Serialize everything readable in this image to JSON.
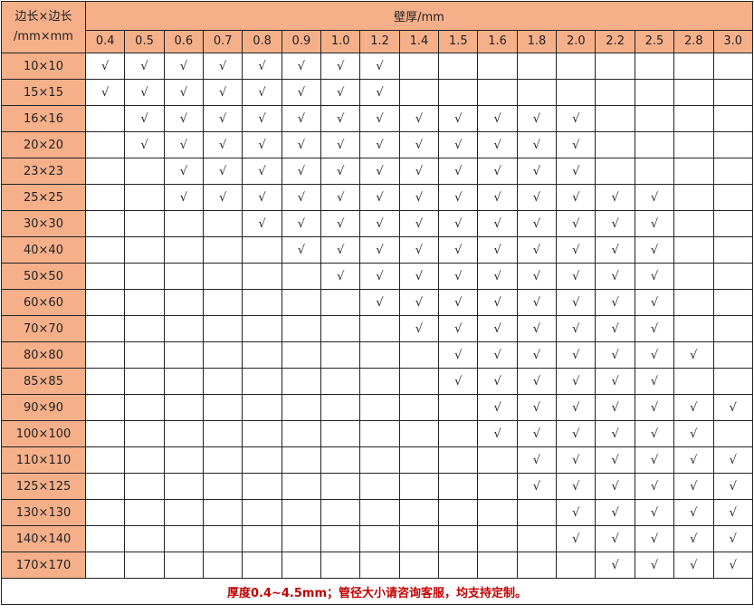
{
  "header": {
    "corner_line1": "边长×边长",
    "corner_line2": "/mm×mm",
    "group_label": "壁厚/mm"
  },
  "columns": [
    "0.4",
    "0.5",
    "0.6",
    "0.7",
    "0.8",
    "0.9",
    "1.0",
    "1.2",
    "1.4",
    "1.5",
    "1.6",
    "1.8",
    "2.0",
    "2.2",
    "2.5",
    "2.8",
    "3.0"
  ],
  "check_mark": "√",
  "rows": [
    {
      "size": "10×10",
      "available": [
        0,
        1,
        2,
        3,
        4,
        5,
        6,
        7
      ]
    },
    {
      "size": "15×15",
      "available": [
        0,
        1,
        2,
        3,
        4,
        5,
        6,
        7
      ]
    },
    {
      "size": "16×16",
      "available": [
        1,
        2,
        3,
        4,
        5,
        6,
        7,
        8,
        9,
        10,
        11,
        12
      ]
    },
    {
      "size": "20×20",
      "available": [
        1,
        2,
        3,
        4,
        5,
        6,
        7,
        8,
        9,
        10,
        11,
        12
      ]
    },
    {
      "size": "23×23",
      "available": [
        2,
        3,
        4,
        5,
        6,
        7,
        8,
        9,
        10,
        11,
        12
      ]
    },
    {
      "size": "25×25",
      "available": [
        2,
        3,
        4,
        5,
        6,
        7,
        8,
        9,
        10,
        11,
        12,
        13,
        14
      ]
    },
    {
      "size": "30×30",
      "available": [
        4,
        5,
        6,
        7,
        8,
        9,
        10,
        11,
        12,
        13,
        14
      ]
    },
    {
      "size": "40×40",
      "available": [
        5,
        6,
        7,
        8,
        9,
        10,
        11,
        12,
        13,
        14
      ]
    },
    {
      "size": "50×50",
      "available": [
        6,
        7,
        8,
        9,
        10,
        11,
        12,
        13,
        14
      ]
    },
    {
      "size": "60×60",
      "available": [
        7,
        8,
        9,
        10,
        11,
        12,
        13,
        14
      ]
    },
    {
      "size": "70×70",
      "available": [
        8,
        9,
        10,
        11,
        12,
        13,
        14
      ]
    },
    {
      "size": "80×80",
      "available": [
        9,
        10,
        11,
        12,
        13,
        14,
        15
      ]
    },
    {
      "size": "85×85",
      "available": [
        9,
        10,
        11,
        12,
        13,
        14
      ]
    },
    {
      "size": "90×90",
      "available": [
        10,
        11,
        12,
        13,
        14,
        15,
        16
      ]
    },
    {
      "size": "100×100",
      "available": [
        10,
        11,
        12,
        13,
        14,
        15
      ]
    },
    {
      "size": "110×110",
      "available": [
        11,
        12,
        13,
        14,
        15,
        16
      ]
    },
    {
      "size": "125×125",
      "available": [
        11,
        12,
        13,
        14,
        15,
        16
      ]
    },
    {
      "size": "130×130",
      "available": [
        12,
        13,
        14,
        15,
        16
      ]
    },
    {
      "size": "140×140",
      "available": [
        12,
        13,
        14,
        15,
        16
      ]
    },
    {
      "size": "170×170",
      "available": [
        13,
        14,
        15,
        16
      ]
    }
  ],
  "footer": "厚度0.4~4.5mm；管径大小请咨询客服，均支持定制。",
  "colors": {
    "header_bg": "#f5b08a",
    "footer_text": "#c00000"
  }
}
